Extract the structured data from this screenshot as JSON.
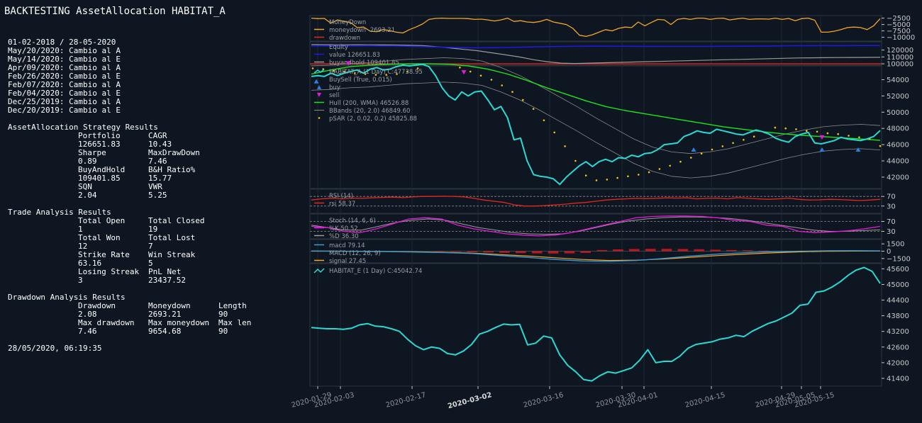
{
  "title": "BACKTESTING AssetAllocation HABITAT_A",
  "report": {
    "period": "01-02-2018 / 28-05-2020",
    "changes": [
      "May/20/2020: Cambio al A",
      "May/14/2020: Cambio al E",
      "Apr/09/2020: Cambio al A",
      "Feb/26/2020: Cambio al E",
      "Feb/07/2020: Cambio al A",
      "Feb/04/2020: Cambio al E",
      "Dec/25/2019: Cambio al A",
      "Dec/20/2019: Cambio al E"
    ],
    "strategy": {
      "heading": "AssetAllocation Strategy Results",
      "rows": [
        [
          "Portfolio",
          "CAGR"
        ],
        [
          "126651.83",
          "10.43"
        ],
        [
          "Sharpe",
          "MaxDrawDown"
        ],
        [
          "0.89",
          "7.46"
        ],
        [
          "BuyAndHold",
          "B&H Ratio%"
        ],
        [
          "109401.85",
          "15.77"
        ],
        [
          "SQN",
          "VWR"
        ],
        [
          "2.04",
          "5.25"
        ]
      ]
    },
    "trades": {
      "heading": "Trade Analysis Results",
      "rows": [
        [
          "Total Open",
          "Total Closed"
        ],
        [
          "1",
          "19"
        ],
        [
          "Total Won",
          "Total Lost"
        ],
        [
          "12",
          "7"
        ],
        [
          "Strike Rate",
          "Win Streak"
        ],
        [
          "63.16",
          "5"
        ],
        [
          "Losing Streak",
          "PnL Net"
        ],
        [
          "3",
          "23437.52"
        ]
      ]
    },
    "drawdown": {
      "heading": "Drawdown Analysis Results",
      "rows": [
        [
          "Drawdown",
          "Moneydown",
          "Length"
        ],
        [
          "2.08",
          "2693.21",
          "90"
        ],
        [
          "Max drawdown",
          "Max moneydown",
          "Max len"
        ],
        [
          "7.46",
          "9654.68",
          "90"
        ]
      ]
    },
    "timestamp": "28/05/2020, 06:19:35"
  },
  "chart_data": [
    {
      "type": "line",
      "panel": "moneydown",
      "legend": [
        "MoneyDown",
        "moneydown -2693.21",
        "drawdown"
      ],
      "yticks": [
        -2500,
        -5000,
        -7500,
        -10000
      ],
      "colors": {
        "moneydown": "#f5a623",
        "drawdown": "#e8261b"
      },
      "series": [
        {
          "name": "moneydown",
          "values": [
            -2500,
            -2700,
            -2600,
            -4500,
            -3200,
            -3800,
            -4200,
            -6200,
            -6000,
            -7600,
            -7800,
            -7000,
            -7400,
            -8000,
            -8300,
            -7000,
            -6000,
            -4800,
            -3000,
            -2600,
            -2500,
            -2600,
            -2600,
            -2600,
            -2700,
            -3000,
            -2900,
            -3200,
            -3600,
            -3200,
            -2500,
            -3800,
            -3500,
            -4000,
            -4200,
            -3800,
            -3000,
            -4000,
            -4500,
            -5000,
            -6500,
            -9200,
            -9654,
            -9000,
            -8000,
            -7000,
            -7500,
            -6500,
            -6000,
            -6200,
            -4000,
            -5500,
            -4200,
            -3000,
            -3200,
            -5000,
            -3000,
            -2600,
            -3000,
            -2500,
            -2500,
            -3000,
            -2600,
            -2500,
            -3200,
            -2800,
            -2500,
            -3000,
            -2800,
            -2800,
            -2900,
            -2500,
            -3000,
            -2600,
            -3500,
            -2700,
            -2500,
            -3300,
            -8000,
            -8000,
            -7600,
            -7000,
            -6200,
            -6000,
            -6200,
            -7000,
            -5500,
            -2693
          ]
        }
      ]
    },
    {
      "type": "line",
      "panel": "value",
      "legend": [
        "Equity",
        "value 126651.83",
        "buyandhold 109401.85"
      ],
      "yticks": [
        120000,
        110000,
        100000
      ],
      "colors": {
        "value": "#1a1ae0",
        "buyandhold": "#9a9a9a",
        "baseline": "#e8261b"
      },
      "baseline": 100000,
      "series": [
        {
          "name": "value",
          "values": [
            126000,
            126100,
            126200,
            126100,
            126200,
            126000,
            125800,
            125500,
            124800,
            124500,
            124000,
            123500,
            123200,
            123400,
            123800,
            124200,
            124600,
            125000,
            125300,
            125500,
            125600,
            125600,
            125500,
            125500,
            125400,
            125400,
            125300,
            125300,
            125300,
            125400,
            125500,
            125600,
            125700,
            125900,
            126100,
            126300,
            126400,
            126500,
            126400,
            126500,
            126600,
            126651
          ]
        },
        {
          "name": "buyandhold",
          "values": [
            128000,
            127800,
            127600,
            127800,
            127700,
            127500,
            127400,
            127000,
            126500,
            125000,
            123000,
            121000,
            119000,
            116000,
            113000,
            110000,
            106000,
            103000,
            101000,
            100500,
            101000,
            101500,
            102000,
            102500,
            103000,
            103500,
            104000,
            104500,
            105000,
            105500,
            106000,
            106500,
            107000,
            107500,
            108000,
            108500,
            108700,
            108900,
            109100,
            109200,
            109300,
            109401
          ]
        }
      ]
    },
    {
      "type": "line",
      "panel": "price",
      "legend": [
        "HABITAT_A (1 Day) C:47738.95",
        "BuySell (True, 0.015)",
        "buy",
        "sell",
        "Hull (200, WMA) 46526.88",
        "BBands (20, 2.0) 46849.60",
        "pSAR (2, 0.02, 0.2) 45825.88"
      ],
      "yticks": [
        54000,
        52000,
        50000,
        48000,
        46000,
        44000,
        42000
      ],
      "ylim": [
        40600,
        55700
      ],
      "colors": {
        "close": "#2bd9d3",
        "hull": "#19e61a",
        "bbands": "#8a8a8a",
        "psar": "#f0c419",
        "buy": "#2a7fe0",
        "sell": "#e61ad8"
      },
      "series": [
        {
          "name": "close",
          "values": [
            54400,
            54500,
            54400,
            54800,
            54500,
            54800,
            55000,
            55200,
            54800,
            55300,
            55500,
            55200,
            55300,
            55600,
            55800,
            55700,
            55800,
            55900,
            55600,
            54500,
            53000,
            52000,
            51500,
            52500,
            52000,
            52500,
            52600,
            51500,
            50300,
            50700,
            49300,
            46600,
            46800,
            44000,
            42300,
            42100,
            42000,
            41800,
            41100,
            42000,
            42700,
            43400,
            43900,
            43300,
            43900,
            44200,
            43900,
            44400,
            44300,
            44700,
            44500,
            44900,
            45000,
            45400,
            46000,
            46100,
            46200,
            47000,
            47300,
            47700,
            47500,
            47400,
            47900,
            47700,
            47500,
            47300,
            47200,
            47500,
            47800,
            47600,
            47300,
            46800,
            46500,
            46300,
            47000,
            47300,
            47500,
            46200,
            46100,
            46300,
            46500,
            46900,
            46700,
            46600,
            46500,
            46700,
            47000,
            47738
          ]
        },
        {
          "name": "hull",
          "values": [
            54700,
            55200,
            55600,
            55800,
            55900,
            55950,
            55950,
            55900,
            55700,
            55300,
            54700,
            53900,
            53000,
            52200,
            51400,
            50700,
            50200,
            49800,
            49400,
            49000,
            48600,
            48200,
            47900,
            47600,
            47350,
            47150,
            47000,
            46850,
            46700,
            46526
          ]
        },
        {
          "name": "bbands_mid",
          "values": [
            54200,
            54300,
            54500,
            54600,
            54800,
            55000,
            55100,
            55200,
            55100,
            54800,
            54000,
            53000,
            51800,
            50500,
            49200,
            47800,
            46500,
            45200,
            44200,
            43600,
            43400,
            43600,
            44000,
            44600,
            45200,
            45800,
            46300,
            46700,
            46900,
            47000,
            46849
          ]
        },
        {
          "name": "psar",
          "values": [
            55400,
            55300,
            55100,
            55000,
            54800,
            54700,
            54600,
            54600,
            54700,
            55000,
            55400,
            55700,
            55900,
            55800,
            55500,
            55000,
            54500,
            54000,
            53300,
            52500,
            51500,
            50400,
            49000,
            47500,
            45800,
            44000,
            42200,
            41600,
            41700,
            41900,
            42100,
            42300,
            42600,
            43000,
            43400,
            43900,
            44400,
            44900,
            45400,
            45800,
            46200,
            46600,
            47000,
            47500,
            48100,
            48000,
            47900,
            47700,
            47600,
            47400,
            47300,
            47100,
            46900,
            46700,
            45825
          ]
        }
      ],
      "buy_markers": [
        54500,
        46100,
        46100,
        46100
      ],
      "sell_markers": [
        55300,
        54200,
        46200
      ]
    },
    {
      "type": "line",
      "panel": "rsi",
      "legend": [
        "RSI (14)",
        "rsi 58.37"
      ],
      "yticks": [
        70,
        30
      ],
      "colors": {
        "rsi": "#e8261b"
      },
      "series": [
        {
          "name": "rsi",
          "values": [
            55,
            60,
            62,
            60,
            63,
            62,
            64,
            66,
            67,
            65,
            68,
            70,
            70,
            71,
            70,
            68,
            62,
            55,
            50,
            45,
            35,
            30,
            30,
            32,
            35,
            38,
            42,
            45,
            50,
            55,
            58,
            60,
            62,
            61,
            62,
            64,
            63,
            64,
            60,
            62,
            63,
            60,
            65,
            62,
            60,
            58,
            60,
            63,
            58,
            55,
            56,
            58,
            57,
            55,
            53,
            55,
            58
          ]
        }
      ]
    },
    {
      "type": "line",
      "panel": "stoch",
      "legend": [
        "Stoch (14, 6, 6)",
        "%K 50.52",
        "%D 36.30"
      ],
      "yticks": [
        70,
        30
      ],
      "colors": {
        "k": "#e61ad8",
        "d": "#9a9a9a"
      },
      "series": [
        {
          "name": "%K",
          "values": [
            50,
            45,
            30,
            25,
            40,
            60,
            80,
            85,
            80,
            55,
            40,
            30,
            20,
            15,
            12,
            15,
            25,
            40,
            55,
            70,
            85,
            90,
            92,
            92,
            90,
            85,
            75,
            70,
            55,
            50,
            30,
            25,
            28,
            32,
            40,
            50
          ]
        },
        {
          "name": "%D",
          "values": [
            55,
            45,
            35,
            35,
            50,
            65,
            75,
            80,
            75,
            60,
            45,
            35,
            25,
            20,
            18,
            20,
            30,
            45,
            60,
            72,
            80,
            85,
            88,
            88,
            86,
            82,
            75,
            65,
            55,
            45,
            35,
            30,
            30,
            33,
            36
          ]
        }
      ]
    },
    {
      "type": "bar",
      "panel": "macd",
      "legend": [
        "macd 79.14",
        "MACD (12, 26, 9)",
        "signal 27.45"
      ],
      "yticks": [
        1500,
        0,
        -1500
      ],
      "colors": {
        "macd": "#3a9bd9",
        "signal": "#f5a623",
        "histo": "#c0141a"
      },
      "series": [
        {
          "name": "macd",
          "values": [
            50,
            0,
            -50,
            -100,
            -200,
            -300,
            -500,
            -900,
            -1300,
            -1700,
            -2000,
            -2100,
            -1900,
            -1500,
            -1000,
            -600,
            -300,
            -100,
            0,
            80,
            100,
            79
          ]
        },
        {
          "name": "signal",
          "values": [
            0,
            0,
            -30,
            -70,
            -150,
            -250,
            -400,
            -700,
            -1000,
            -1350,
            -1700,
            -1900,
            -1850,
            -1600,
            -1250,
            -900,
            -600,
            -350,
            -150,
            -20,
            20,
            27
          ]
        },
        {
          "name": "histo",
          "values": [
            -150,
            -250,
            -350,
            -450,
            -550,
            -650,
            -750,
            -800,
            -750,
            -600,
            400,
            600,
            750,
            800,
            800,
            750,
            650,
            500,
            400,
            300,
            200,
            100
          ]
        }
      ]
    },
    {
      "type": "line",
      "panel": "secondary",
      "legend": [
        "HABITAT_E (1 Day) C:45042.74"
      ],
      "yticks": [
        45600,
        45000,
        44400,
        43800,
        43200,
        42600,
        42000,
        41400
      ],
      "ylim": [
        41100,
        45800
      ],
      "colors": {
        "close": "#2bd9d3"
      },
      "series": [
        {
          "name": "HABITAT_E",
          "values": [
            43350,
            43320,
            43300,
            43300,
            43280,
            43320,
            43450,
            43500,
            43400,
            43380,
            43300,
            43200,
            42900,
            42650,
            42500,
            42600,
            42550,
            42350,
            42300,
            42450,
            42700,
            43100,
            43200,
            43350,
            43480,
            43450,
            43470,
            42680,
            42750,
            43020,
            42950,
            42300,
            41900,
            41650,
            41350,
            41300,
            41500,
            41650,
            41600,
            41700,
            41800,
            42100,
            42500,
            42000,
            42050,
            42050,
            42250,
            42550,
            42700,
            42750,
            42800,
            42900,
            42950,
            43050,
            43000,
            43200,
            43350,
            43500,
            43600,
            43750,
            43900,
            44200,
            44250,
            44700,
            44750,
            44900,
            45100,
            45350,
            45550,
            45650,
            45500,
            45042
          ]
        }
      ]
    }
  ],
  "x_axis": {
    "ticks": [
      "2020-01-29",
      "2020-02-03",
      "2020-02-17",
      "2020-03-02",
      "2020-03-16",
      "2020-03-30",
      "2020-04-01",
      "2020-04-15",
      "2020-04-29",
      "2020-05-05",
      "2020-05-15"
    ],
    "bold_tick": "2020-03-02"
  },
  "colors": {
    "background": "#0e1621",
    "grid": "#2a3440",
    "axis_text": "#c8c8c8",
    "legend_text": "#9aa0a6"
  }
}
